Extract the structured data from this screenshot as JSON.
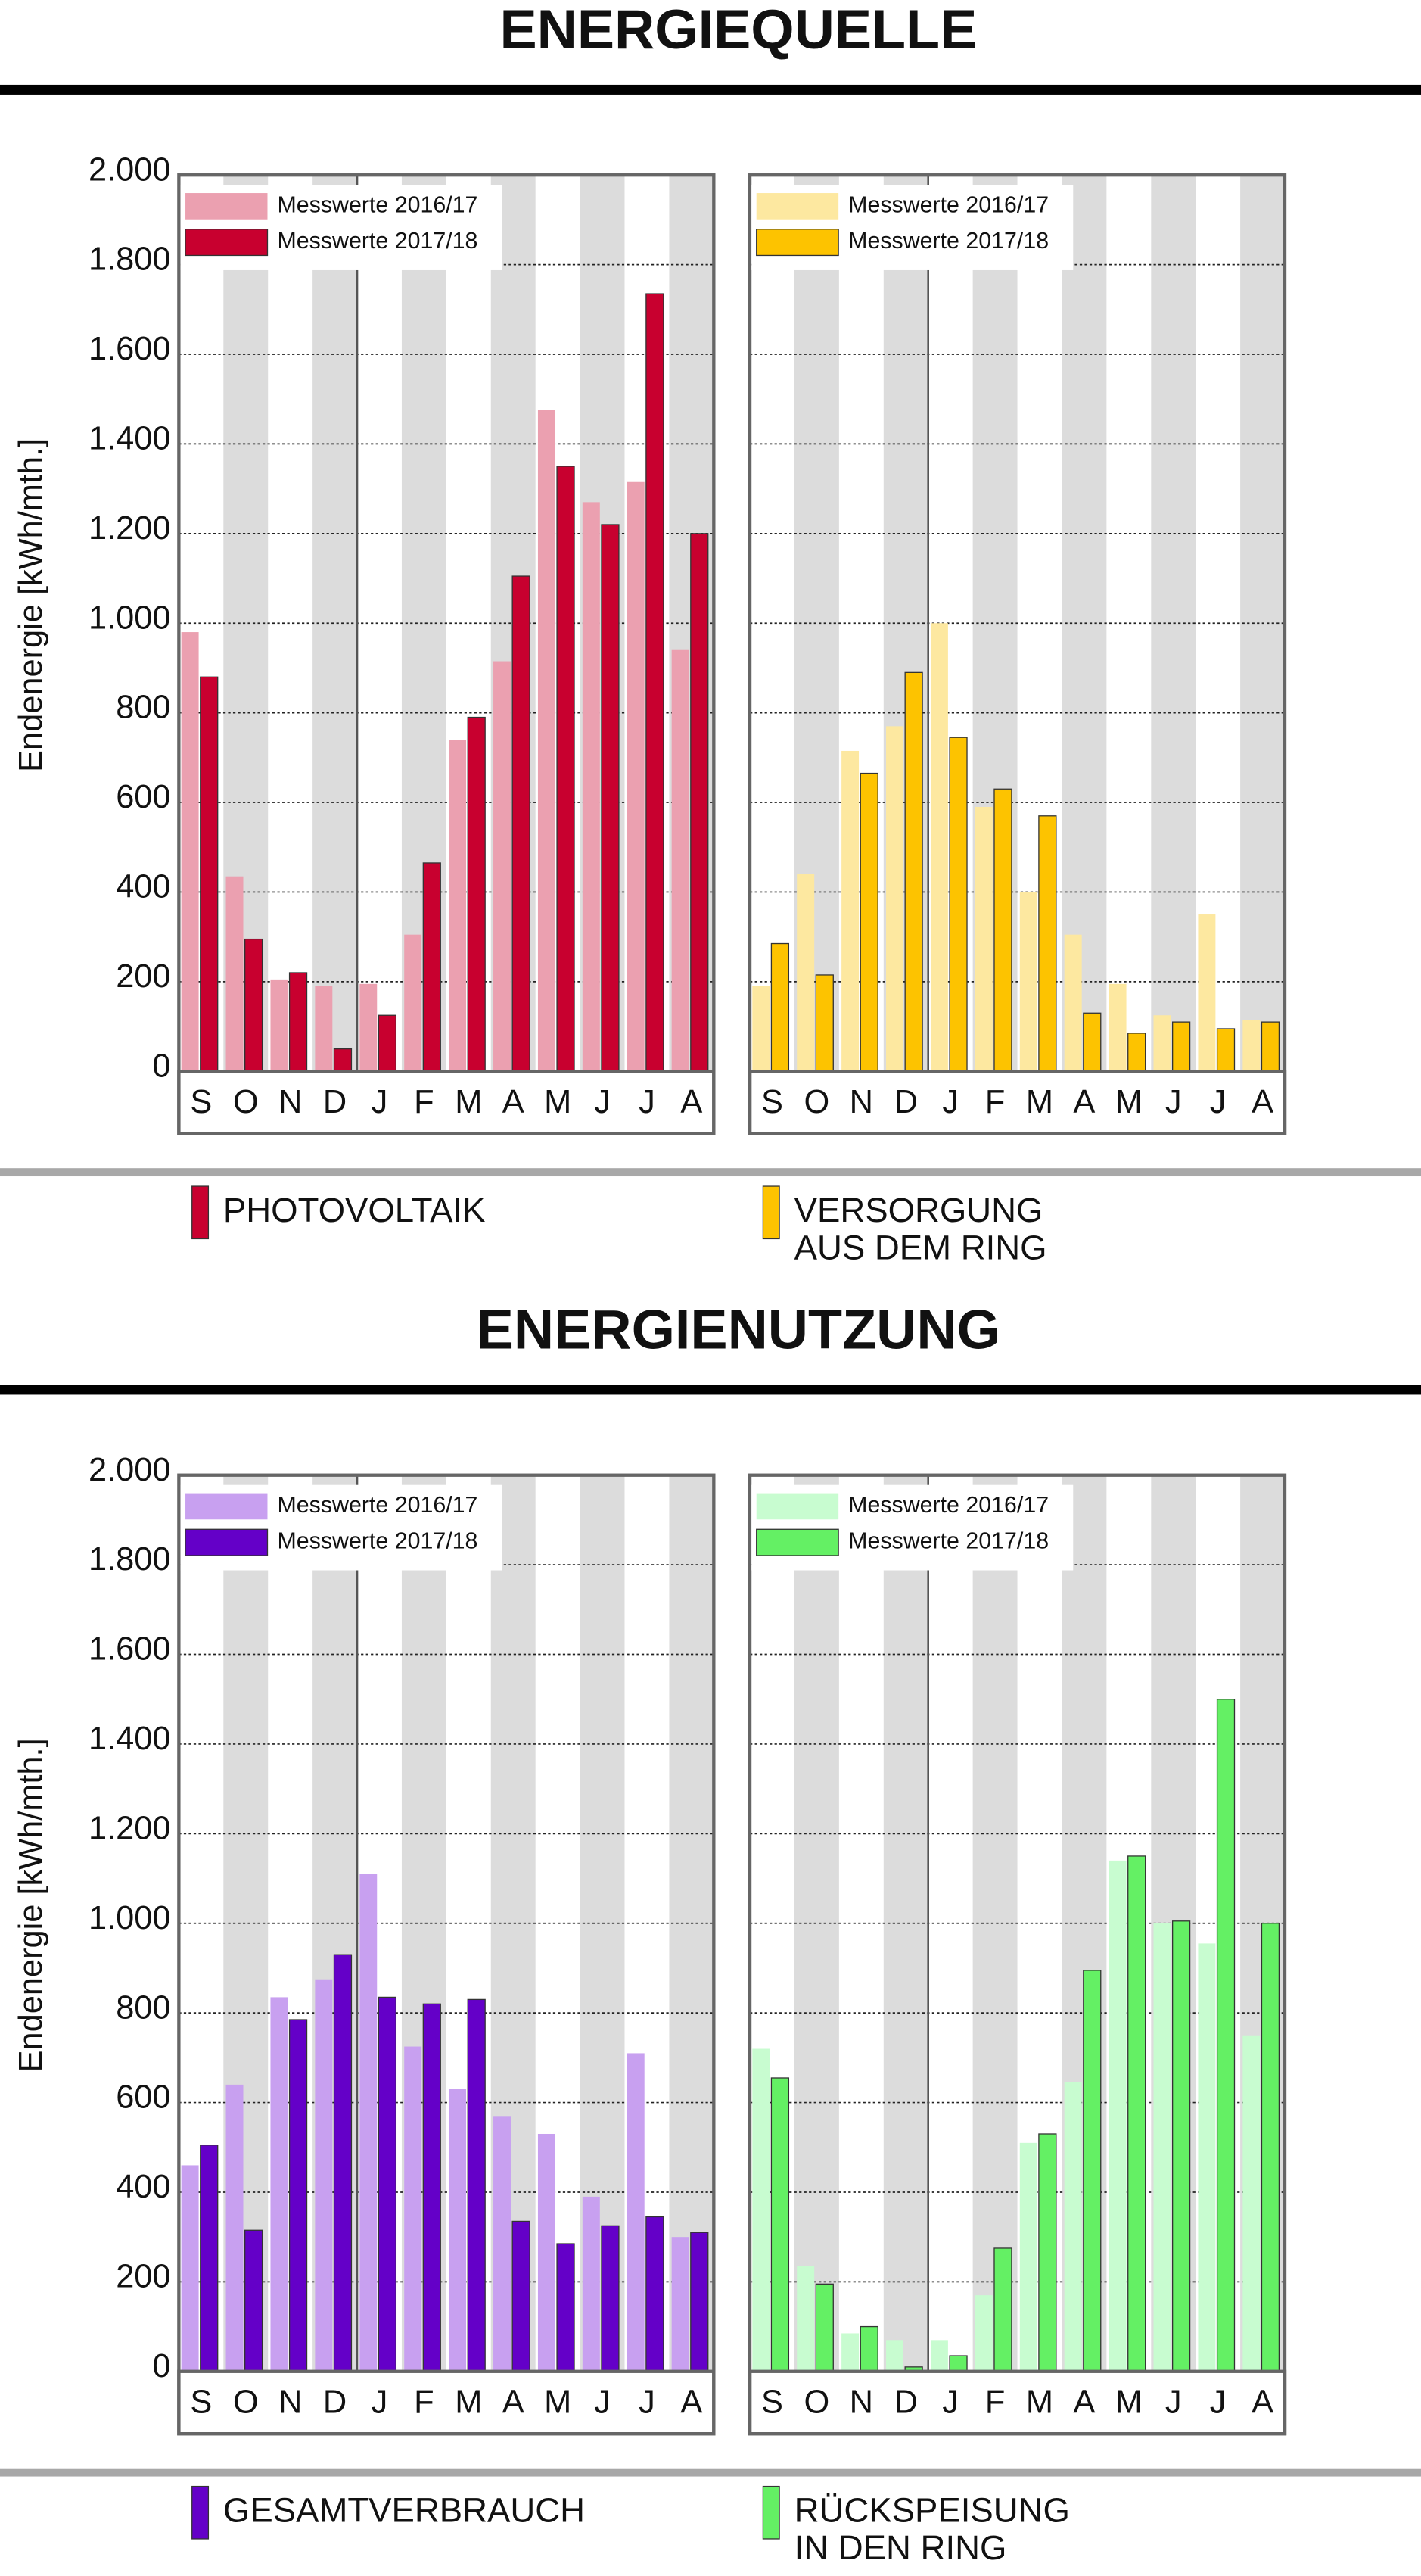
{
  "sections": [
    {
      "title": "ENERGIEQUELLE"
    },
    {
      "title": "ENERGIENUTZUNG"
    }
  ],
  "chart_data": [
    {
      "type": "bar",
      "ylabel": "Endenergie [kWh/mth.]",
      "categories": [
        "S",
        "O",
        "N",
        "D",
        "J",
        "F",
        "M",
        "A",
        "M",
        "J",
        "J",
        "A"
      ],
      "series": [
        {
          "name": "Messwerte 2016/17",
          "color": "#eba0b0",
          "values": [
            980,
            435,
            205,
            190,
            195,
            305,
            740,
            915,
            1475,
            1270,
            1315,
            940
          ]
        },
        {
          "name": "Messwerte 2017/18",
          "color": "#c8002f",
          "values": [
            880,
            295,
            220,
            50,
            125,
            465,
            790,
            1105,
            1350,
            1220,
            1735,
            1200
          ]
        }
      ],
      "ylim": [
        0,
        2000
      ],
      "yticks": [
        0,
        {
          "value": 200,
          "label": "200"
        },
        {
          "value": 400,
          "label": "400"
        },
        {
          "value": 600,
          "label": "600"
        },
        {
          "value": 800,
          "label": "800"
        },
        {
          "value": 1000,
          "label": "1.000"
        },
        {
          "value": 1200,
          "label": "1.200"
        },
        {
          "value": 1400,
          "label": "1.400"
        },
        {
          "value": 1600,
          "label": "1.600"
        },
        {
          "value": 1800,
          "label": "1.800"
        },
        {
          "value": 2000,
          "label": "2.000"
        }
      ],
      "label": [
        "PHOTOVOLTAIK"
      ]
    },
    {
      "type": "bar",
      "categories": [
        "S",
        "O",
        "N",
        "D",
        "J",
        "F",
        "M",
        "A",
        "M",
        "J",
        "J",
        "A"
      ],
      "series": [
        {
          "name": "Messwerte 2016/17",
          "color": "#fde8a0",
          "values": [
            190,
            440,
            715,
            770,
            1000,
            590,
            400,
            305,
            195,
            125,
            350,
            115
          ]
        },
        {
          "name": "Messwerte 2017/18",
          "color": "#fdc300",
          "values": [
            285,
            215,
            665,
            890,
            745,
            630,
            570,
            130,
            85,
            110,
            95,
            110
          ]
        }
      ],
      "ylim": [
        0,
        2000
      ],
      "yticks": [
        0,
        200,
        400,
        600,
        800,
        1000,
        1200,
        1400,
        1600,
        1800,
        2000
      ],
      "label": [
        "VERSORGUNG",
        "AUS DEM RING"
      ]
    },
    {
      "type": "bar",
      "ylabel": "Endenergie [kWh/mth.]",
      "categories": [
        "S",
        "O",
        "N",
        "D",
        "J",
        "F",
        "M",
        "A",
        "M",
        "J",
        "J",
        "A"
      ],
      "series": [
        {
          "name": "Messwerte 2016/17",
          "color": "#c8a0f0",
          "values": [
            460,
            640,
            835,
            875,
            1110,
            725,
            630,
            570,
            530,
            390,
            710,
            300
          ]
        },
        {
          "name": "Messwerte 2017/18",
          "color": "#6400c8",
          "values": [
            505,
            315,
            785,
            930,
            835,
            820,
            830,
            335,
            285,
            325,
            345,
            310
          ]
        }
      ],
      "ylim": [
        0,
        2000
      ],
      "yticks": [
        0,
        {
          "value": 200,
          "label": "200"
        },
        {
          "value": 400,
          "label": "400"
        },
        {
          "value": 600,
          "label": "600"
        },
        {
          "value": 800,
          "label": "800"
        },
        {
          "value": 1000,
          "label": "1.000"
        },
        {
          "value": 1200,
          "label": "1.200"
        },
        {
          "value": 1400,
          "label": "1.400"
        },
        {
          "value": 1600,
          "label": "1.600"
        },
        {
          "value": 1800,
          "label": "1.800"
        },
        {
          "value": 2000,
          "label": "2.000"
        }
      ],
      "label": [
        "GESAMTVERBRAUCH"
      ]
    },
    {
      "type": "bar",
      "categories": [
        "S",
        "O",
        "N",
        "D",
        "J",
        "F",
        "M",
        "A",
        "M",
        "J",
        "J",
        "A"
      ],
      "series": [
        {
          "name": "Messwerte 2016/17",
          "color": "#c8fcd0",
          "values": [
            720,
            235,
            85,
            70,
            70,
            170,
            510,
            645,
            1140,
            1000,
            955,
            750
          ]
        },
        {
          "name": "Messwerte 2017/18",
          "color": "#64f064",
          "values": [
            655,
            195,
            100,
            10,
            35,
            275,
            530,
            895,
            1150,
            1005,
            1500,
            1000
          ]
        }
      ],
      "ylim": [
        0,
        2000
      ],
      "yticks": [
        0,
        200,
        400,
        600,
        800,
        1000,
        1200,
        1400,
        1600,
        1800,
        2000
      ],
      "label": [
        "RÜCKSPEISUNG",
        "IN DEN RING"
      ]
    }
  ]
}
